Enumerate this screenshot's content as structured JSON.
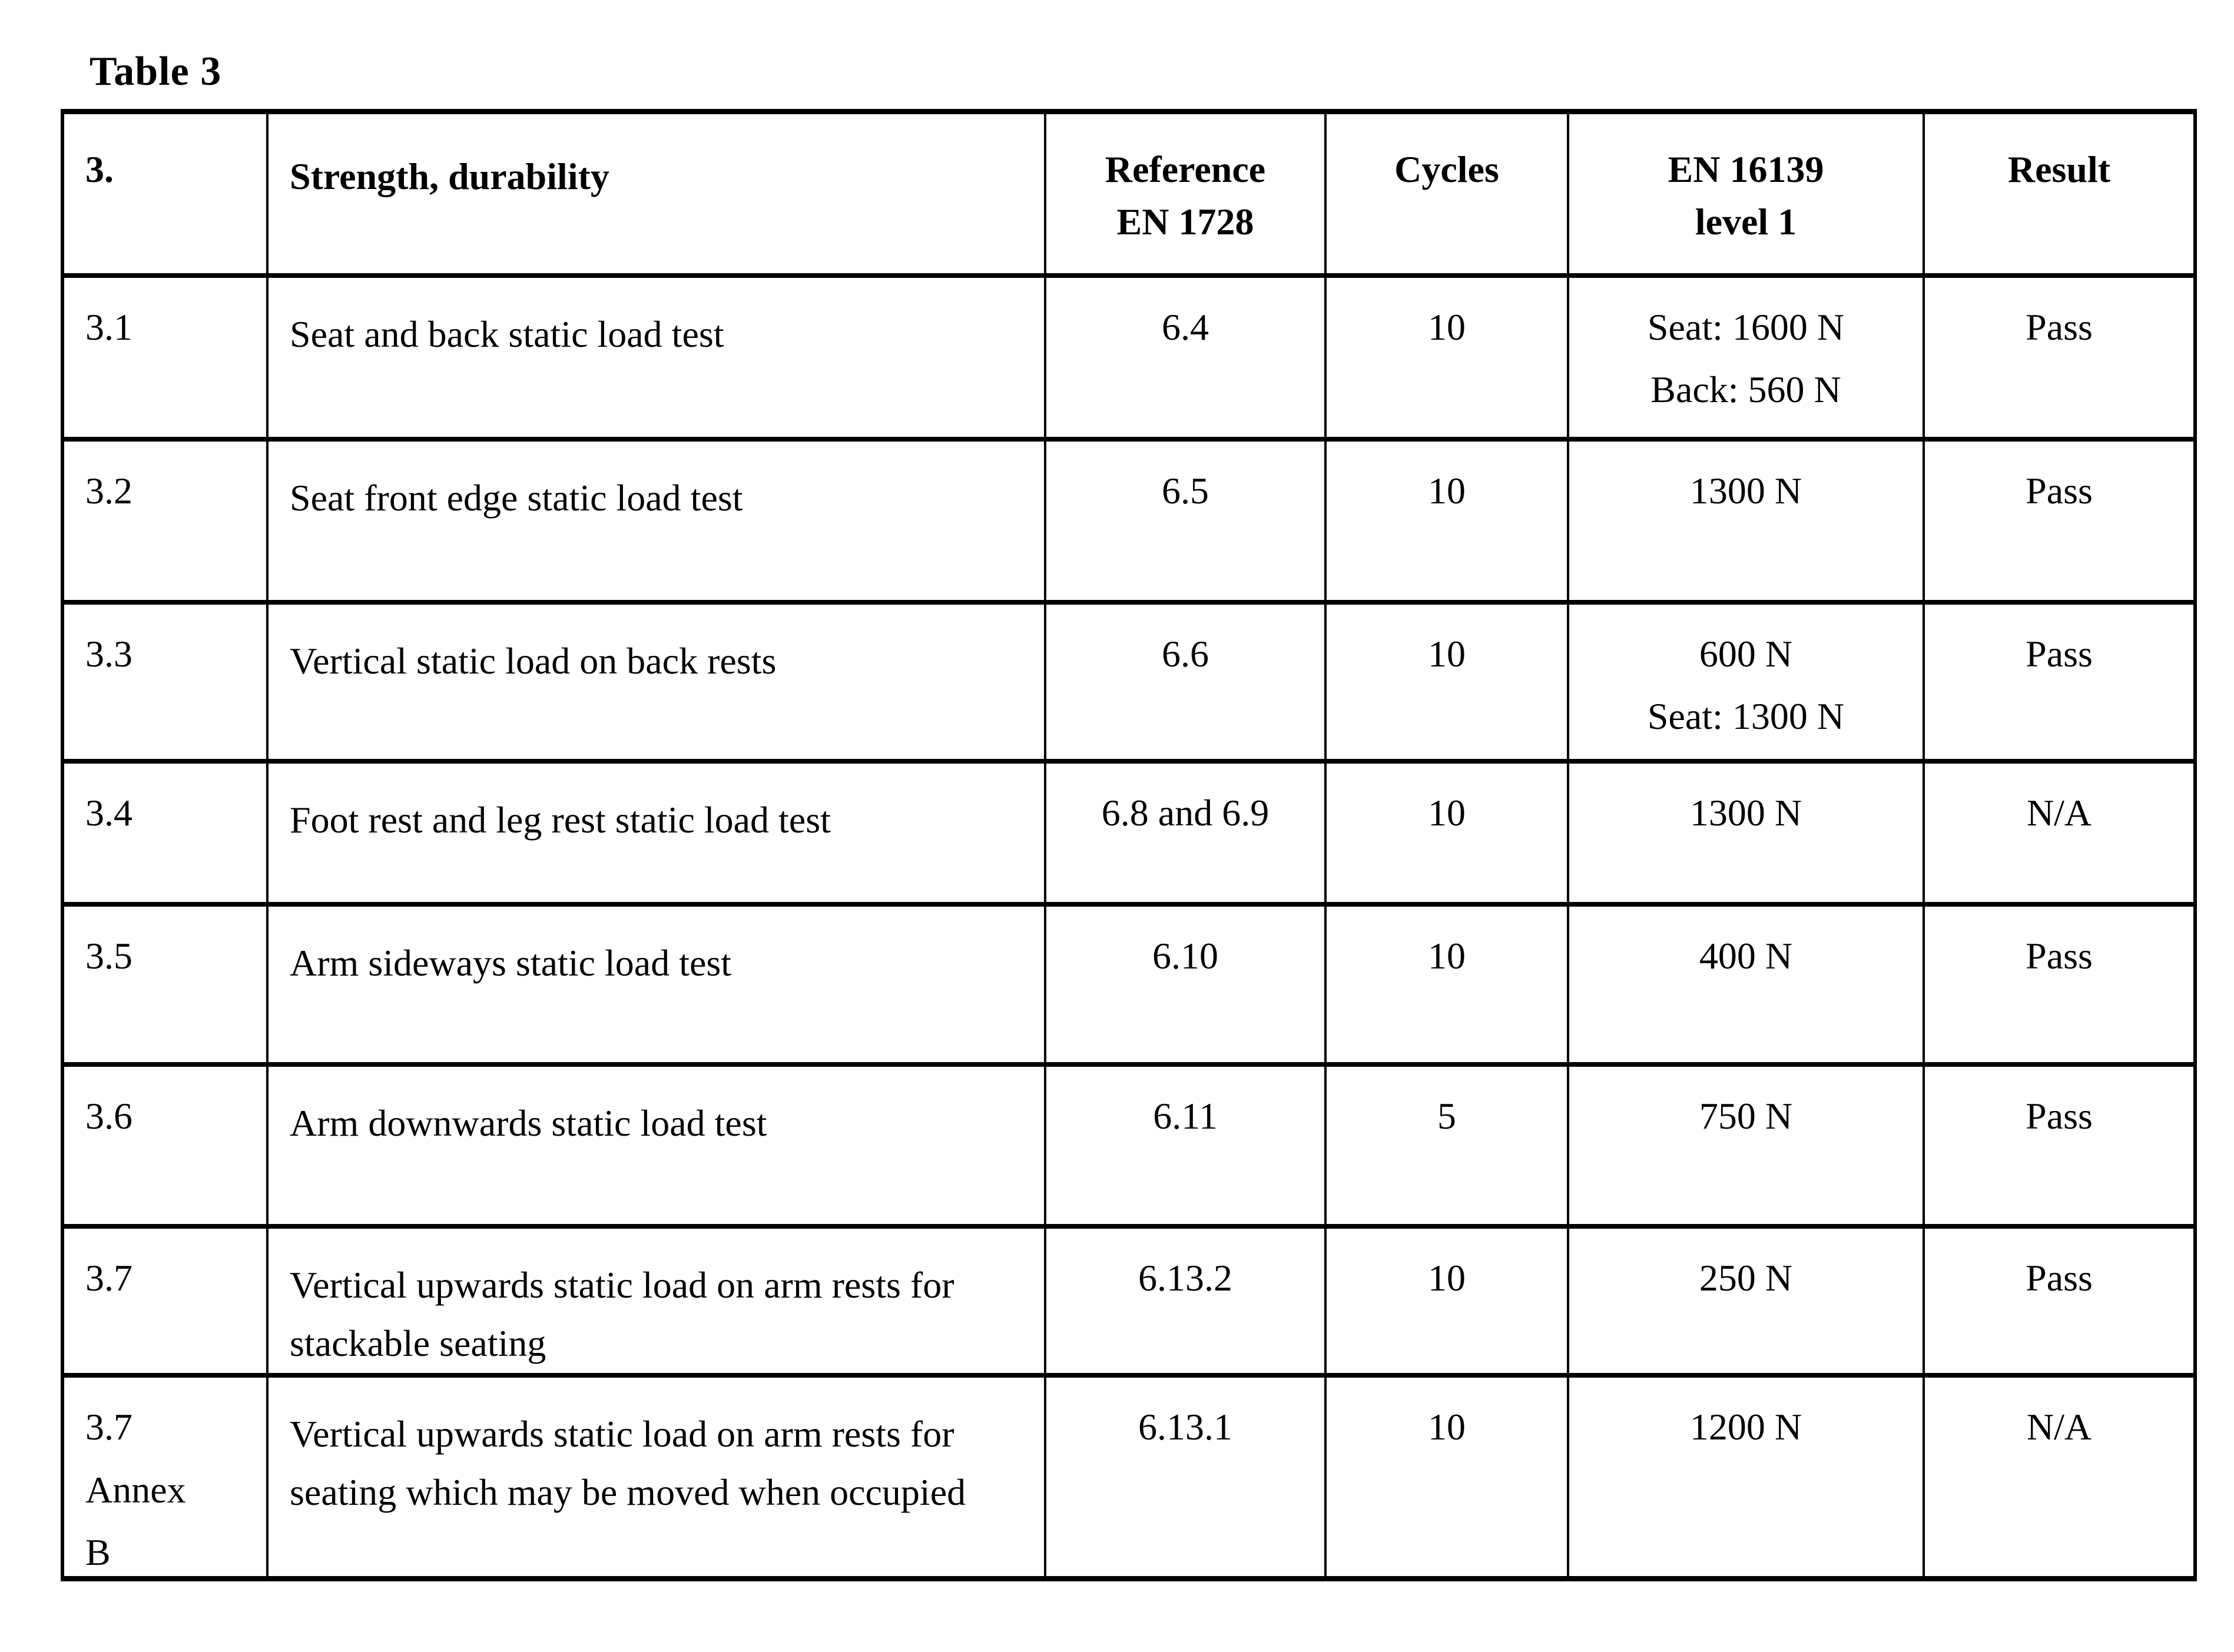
{
  "page": {
    "title": "Table 3",
    "colors": {
      "background": "#ffffff",
      "text": "#000000",
      "border": "#000000"
    }
  },
  "table": {
    "columns": [
      {
        "id": "item",
        "lines": [
          "3."
        ]
      },
      {
        "id": "test",
        "lines": [
          "Strength, durability"
        ]
      },
      {
        "id": "reference",
        "lines": [
          "Reference",
          "EN 1728"
        ]
      },
      {
        "id": "cycles",
        "lines": [
          "Cycles"
        ]
      },
      {
        "id": "level",
        "lines": [
          "EN 16139",
          "level 1"
        ]
      },
      {
        "id": "result",
        "lines": [
          "Result"
        ]
      }
    ],
    "rows": [
      {
        "item_lines": [
          "3.1"
        ],
        "test": "Seat and back static load test",
        "reference": "6.4",
        "cycles": "10",
        "level_lines": [
          "Seat: 1600 N",
          "Back: 560 N"
        ],
        "result": "Pass"
      },
      {
        "item_lines": [
          "3.2"
        ],
        "test": "Seat front edge static load test",
        "reference": "6.5",
        "cycles": "10",
        "level_lines": [
          "1300 N"
        ],
        "result": "Pass"
      },
      {
        "item_lines": [
          "3.3"
        ],
        "test": "Vertical static load on back rests",
        "reference": "6.6",
        "cycles": "10",
        "level_lines": [
          "600 N",
          "Seat: 1300 N"
        ],
        "result": "Pass"
      },
      {
        "item_lines": [
          "3.4"
        ],
        "test": "Foot rest and leg rest static load test",
        "reference": "6.8 and 6.9",
        "cycles": "10",
        "level_lines": [
          "1300 N"
        ],
        "result": "N/A"
      },
      {
        "item_lines": [
          "3.5"
        ],
        "test": "Arm sideways static load test",
        "reference": "6.10",
        "cycles": "10",
        "level_lines": [
          "400 N"
        ],
        "result": "Pass"
      },
      {
        "item_lines": [
          "3.6"
        ],
        "test": "Arm downwards static load test",
        "reference": "6.11",
        "cycles": "5",
        "level_lines": [
          "750 N"
        ],
        "result": "Pass"
      },
      {
        "item_lines": [
          "3.7"
        ],
        "test": "Vertical upwards static load on arm rests for stackable seating",
        "reference": "6.13.2",
        "cycles": "10",
        "level_lines": [
          "250 N"
        ],
        "result": "Pass"
      },
      {
        "item_lines": [
          "3.7",
          "Annex",
          "B"
        ],
        "test": "Vertical upwards static load on arm rests for seating which may be moved when occupied",
        "reference": "6.13.1",
        "cycles": "10",
        "level_lines": [
          "1200 N"
        ],
        "result": "N/A"
      }
    ]
  }
}
